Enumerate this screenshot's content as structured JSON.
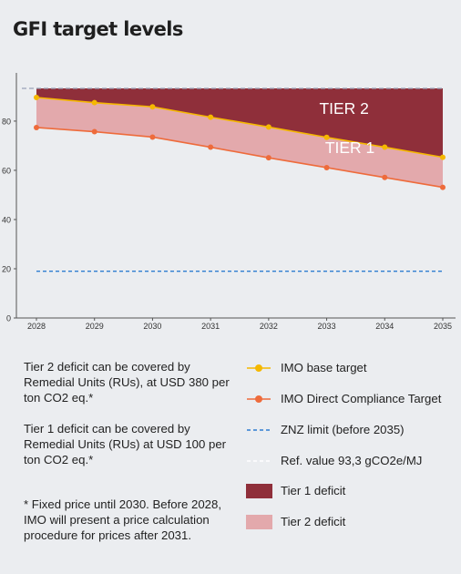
{
  "title": "GFI target levels",
  "colors": {
    "background": "#ebedf0",
    "tier2_fill": "#8f2f3a",
    "tier1_fill": "#e3a9ac",
    "base_target": "#f5b800",
    "direct_compliance": "#ee6b3b",
    "znz": "#2e7dd1",
    "ref": "#ffffff",
    "axis": "#555555",
    "grid": "#ffffff"
  },
  "chart_data": {
    "type": "area",
    "x": [
      2028,
      2029,
      2030,
      2031,
      2032,
      2033,
      2034,
      2035
    ],
    "xticks": [
      "2028",
      "2029",
      "2030",
      "2031",
      "2032",
      "2033",
      "2034",
      "2035"
    ],
    "ylim": [
      0,
      93.3
    ],
    "yticks": [
      "0",
      "20",
      "40",
      "60",
      "80"
    ],
    "yticks_values": [
      0,
      20,
      40,
      60,
      80
    ],
    "grid": false,
    "series": [
      {
        "name": "IMO base target",
        "kind": "line-markers",
        "values": [
          89.6,
          87.5,
          85.8,
          81.6,
          77.6,
          73.4,
          69.4,
          65.3
        ]
      },
      {
        "name": "IMO Direct Compliance Target",
        "kind": "line-markers",
        "values": [
          77.4,
          75.7,
          73.5,
          69.4,
          65.1,
          61.1,
          57.1,
          53.1
        ]
      },
      {
        "name": "ZNZ limit (before 2035)",
        "kind": "dashed-line",
        "values": [
          19,
          19,
          19,
          19,
          19,
          19,
          19,
          19
        ]
      },
      {
        "name": "Ref. value 93,3 gCO2e/MJ",
        "kind": "dashed-line",
        "values": [
          93.3,
          93.3,
          93.3,
          93.3,
          93.3,
          93.3,
          93.3,
          93.3
        ]
      }
    ],
    "areas": [
      {
        "name": "Tier 1 deficit",
        "from": "IMO base target",
        "to": "Ref. value 93,3 gCO2e/MJ"
      },
      {
        "name": "Tier 2 deficit",
        "from": "IMO Direct Compliance Target",
        "to": "IMO base target"
      }
    ],
    "annotations": [
      {
        "text": "TIER 2",
        "x": 2033.3,
        "y": 83
      },
      {
        "text": "TIER 1",
        "x": 2033.4,
        "y": 67
      }
    ]
  },
  "notes": {
    "tier2": "Tier 2 deficit can be covered by Remedial Units (RUs), at USD 380 per ton CO2 eq.*",
    "tier1": "Tier 1 deficit can be covered by Remedial Units (RUs) at USD 100 per ton CO2 eq.*",
    "footnote": "* Fixed price until 2030. Before 2028, IMO will present a price calculation procedure for prices after 2031."
  },
  "legend": [
    {
      "label": "IMO base target",
      "kind": "line-marker",
      "color": "#f5b800"
    },
    {
      "label": "IMO Direct Compliance Target",
      "kind": "line-marker",
      "color": "#ee6b3b"
    },
    {
      "label": "ZNZ limit (before 2035)",
      "kind": "dashed",
      "color": "#2e7dd1"
    },
    {
      "label": "Ref. value 93,3 gCO2e/MJ",
      "kind": "dashed",
      "color": "#ffffff"
    },
    {
      "label": "Tier 1 deficit",
      "kind": "box",
      "color": "#8f2f3a"
    },
    {
      "label": "Tier 2 deficit",
      "kind": "box",
      "color": "#e3a9ac"
    }
  ]
}
